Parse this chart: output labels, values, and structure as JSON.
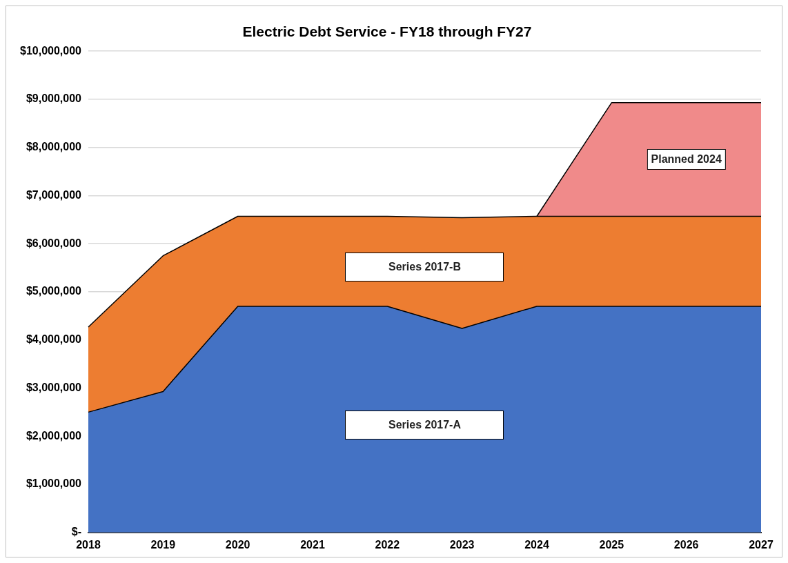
{
  "chart_data": {
    "type": "area",
    "title": "Electric Debt Service - FY18 through FY27",
    "stacked": true,
    "categories": [
      "2018",
      "2019",
      "2020",
      "2021",
      "2022",
      "2023",
      "2024",
      "2025",
      "2026",
      "2027"
    ],
    "series": [
      {
        "name": "Series 2017-A",
        "color": "#4472c4",
        "values": [
          2500000,
          2930000,
          4700000,
          4700000,
          4700000,
          4240000,
          4700000,
          4700000,
          4700000,
          4700000
        ]
      },
      {
        "name": "Series 2017-B",
        "color": "#ed7d31",
        "values": [
          1770000,
          2820000,
          1870000,
          1870000,
          1870000,
          2300000,
          1870000,
          1870000,
          1870000,
          1870000
        ]
      },
      {
        "name": "Planned 2024",
        "color": "#f08a8a",
        "values": [
          null,
          null,
          null,
          null,
          null,
          null,
          0,
          2360000,
          2360000,
          2360000
        ]
      }
    ],
    "ylim": [
      0,
      10000000
    ],
    "yticks": [
      {
        "value": 0,
        "label": "$-"
      },
      {
        "value": 1000000,
        "label": "$1,000,000"
      },
      {
        "value": 2000000,
        "label": "$2,000,000"
      },
      {
        "value": 3000000,
        "label": "$3,000,000"
      },
      {
        "value": 4000000,
        "label": "$4,000,000"
      },
      {
        "value": 5000000,
        "label": "$5,000,000"
      },
      {
        "value": 6000000,
        "label": "$6,000,000"
      },
      {
        "value": 7000000,
        "label": "$7,000,000"
      },
      {
        "value": 8000000,
        "label": "$8,000,000"
      },
      {
        "value": 9000000,
        "label": "$9,000,000"
      },
      {
        "value": 10000000,
        "label": "$10,000,000"
      }
    ],
    "grid": "y",
    "legend": false
  }
}
